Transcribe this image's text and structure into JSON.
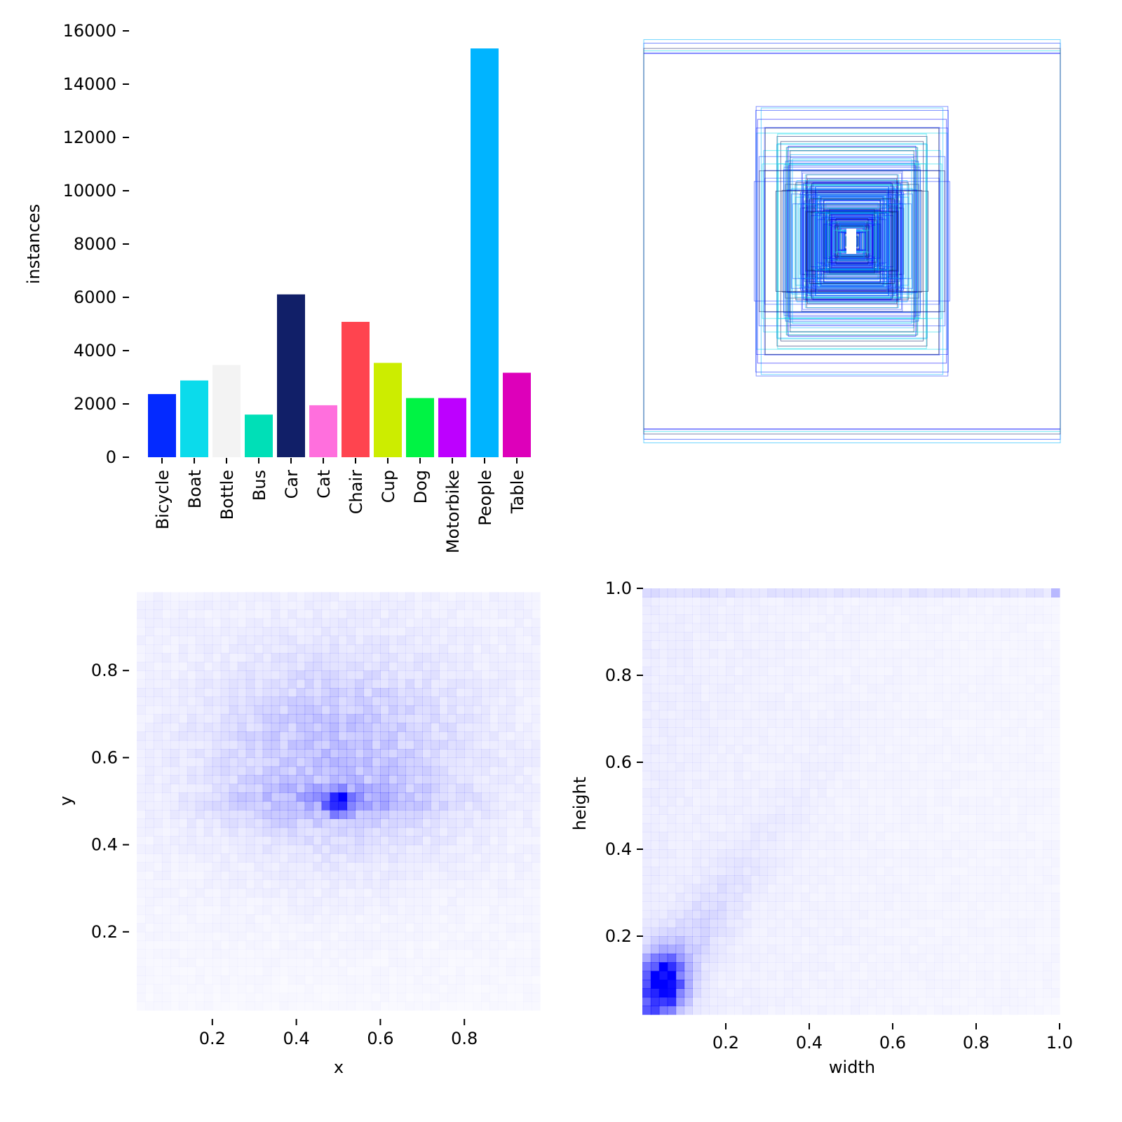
{
  "chart_data": [
    {
      "type": "bar",
      "title": "",
      "xlabel": "",
      "ylabel": "instances",
      "ylim": [
        0,
        16000
      ],
      "yticks": [
        0,
        2000,
        4000,
        6000,
        8000,
        10000,
        12000,
        14000,
        16000
      ],
      "categories": [
        "Bicycle",
        "Boat",
        "Bottle",
        "Bus",
        "Car",
        "Cat",
        "Chair",
        "Cup",
        "Dog",
        "Motorbike",
        "People",
        "Table"
      ],
      "values": [
        2370,
        2880,
        3460,
        1600,
        6110,
        1950,
        5080,
        3540,
        2220,
        2220,
        15340,
        3170
      ],
      "colors": [
        "#042aff",
        "#0bdbeb",
        "#f3f3f3",
        "#00dfb7",
        "#111f68",
        "#ff6fdd",
        "#ff444f",
        "#cced00",
        "#00f344",
        "#bd00ff",
        "#00b4ff",
        "#dd00ba"
      ]
    },
    {
      "type": "other",
      "description": "label box outlines centered"
    },
    {
      "type": "heatmap",
      "xlabel": "x",
      "ylabel": "y",
      "xticks": [
        "0.2",
        "0.4",
        "0.6",
        "0.8"
      ],
      "yticks": [
        "0.2",
        "0.4",
        "0.6",
        "0.8"
      ],
      "xlim": [
        0,
        1
      ],
      "ylim": [
        0,
        1
      ],
      "peak": [
        0.5,
        0.5
      ],
      "color": "#0000ff"
    },
    {
      "type": "heatmap",
      "xlabel": "width",
      "ylabel": "height",
      "xticks": [
        "0.2",
        "0.4",
        "0.6",
        "0.8",
        "1.0"
      ],
      "yticks": [
        "0.2",
        "0.4",
        "0.6",
        "0.8",
        "1.0"
      ],
      "xlim": [
        0,
        1
      ],
      "ylim": [
        0,
        1
      ],
      "peak": [
        0.05,
        0.1
      ],
      "color": "#0000ff"
    }
  ]
}
